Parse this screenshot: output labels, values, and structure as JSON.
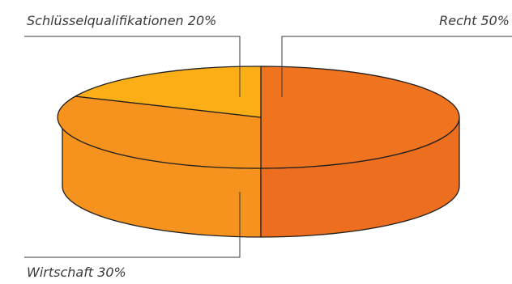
{
  "chart_data": {
    "type": "pie",
    "style": "3d",
    "slices": [
      {
        "label": "Recht",
        "value": 50,
        "color": "#f07320",
        "side_color": "#ee6e1f"
      },
      {
        "label": "Wirtschaft",
        "value": 30,
        "color": "#f6921e",
        "side_color": "#f6921e"
      },
      {
        "label": "Schlüsselqualifikationen",
        "value": 20,
        "color": "#fcae17",
        "side_color": "#f6921e"
      }
    ],
    "labels": {
      "recht": "Recht 50%",
      "wirtschaft": "Wirtschaft 30%",
      "schluessel": "Schlüsselqualifikationen 20%"
    },
    "title": "",
    "legend": "none"
  }
}
